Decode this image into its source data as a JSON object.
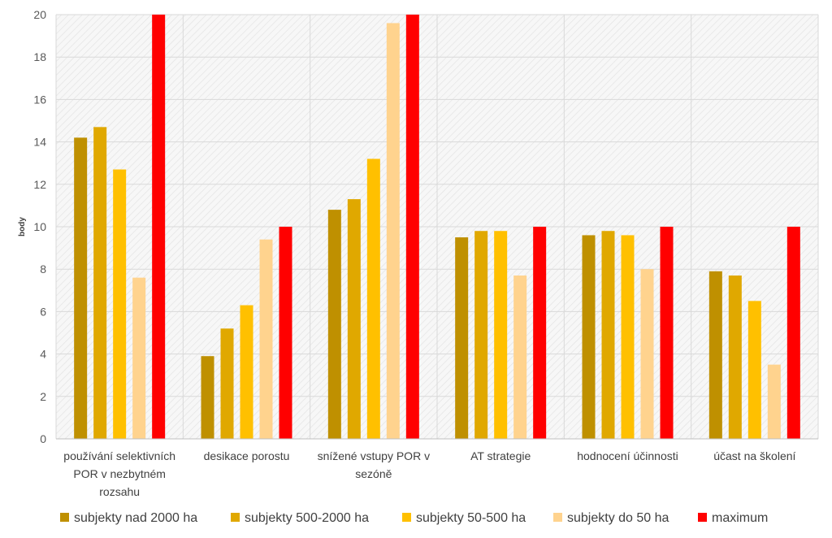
{
  "chart_data": {
    "type": "bar",
    "ylabel": "body",
    "xlabel": "",
    "ylim": [
      0,
      20
    ],
    "yticks": [
      "0",
      "2",
      "4",
      "6",
      "8",
      "10",
      "12",
      "14",
      "16",
      "18",
      "20"
    ],
    "grid": true,
    "legend_position": "bottom",
    "categories": [
      [
        "používání selektivních",
        "POR v nezbytném",
        "rozsahu"
      ],
      [
        "desikace porostu"
      ],
      [
        "snížené vstupy POR v",
        "sezóně"
      ],
      [
        "AT strategie"
      ],
      [
        "hodnocení účinnosti"
      ],
      [
        "účast na školení"
      ]
    ],
    "series": [
      {
        "name": "subjekty nad 2000 ha",
        "color": "#BF9000",
        "values": [
          14.2,
          3.9,
          10.8,
          9.5,
          9.6,
          7.9
        ]
      },
      {
        "name": "subjekty 500-2000 ha",
        "color": "#E0A800",
        "values": [
          14.7,
          5.2,
          11.3,
          9.8,
          9.8,
          7.7
        ]
      },
      {
        "name": "subjekty 50-500 ha",
        "color": "#FFC000",
        "values": [
          12.7,
          6.3,
          13.2,
          9.8,
          9.6,
          6.5
        ]
      },
      {
        "name": "subjekty do 50 ha",
        "color": "#FFD38E",
        "values": [
          7.6,
          9.4,
          19.6,
          7.7,
          8.0,
          3.5
        ]
      },
      {
        "name": "maximum",
        "color": "#FF0000",
        "values": [
          20,
          10,
          20,
          10,
          10,
          10
        ]
      }
    ]
  }
}
